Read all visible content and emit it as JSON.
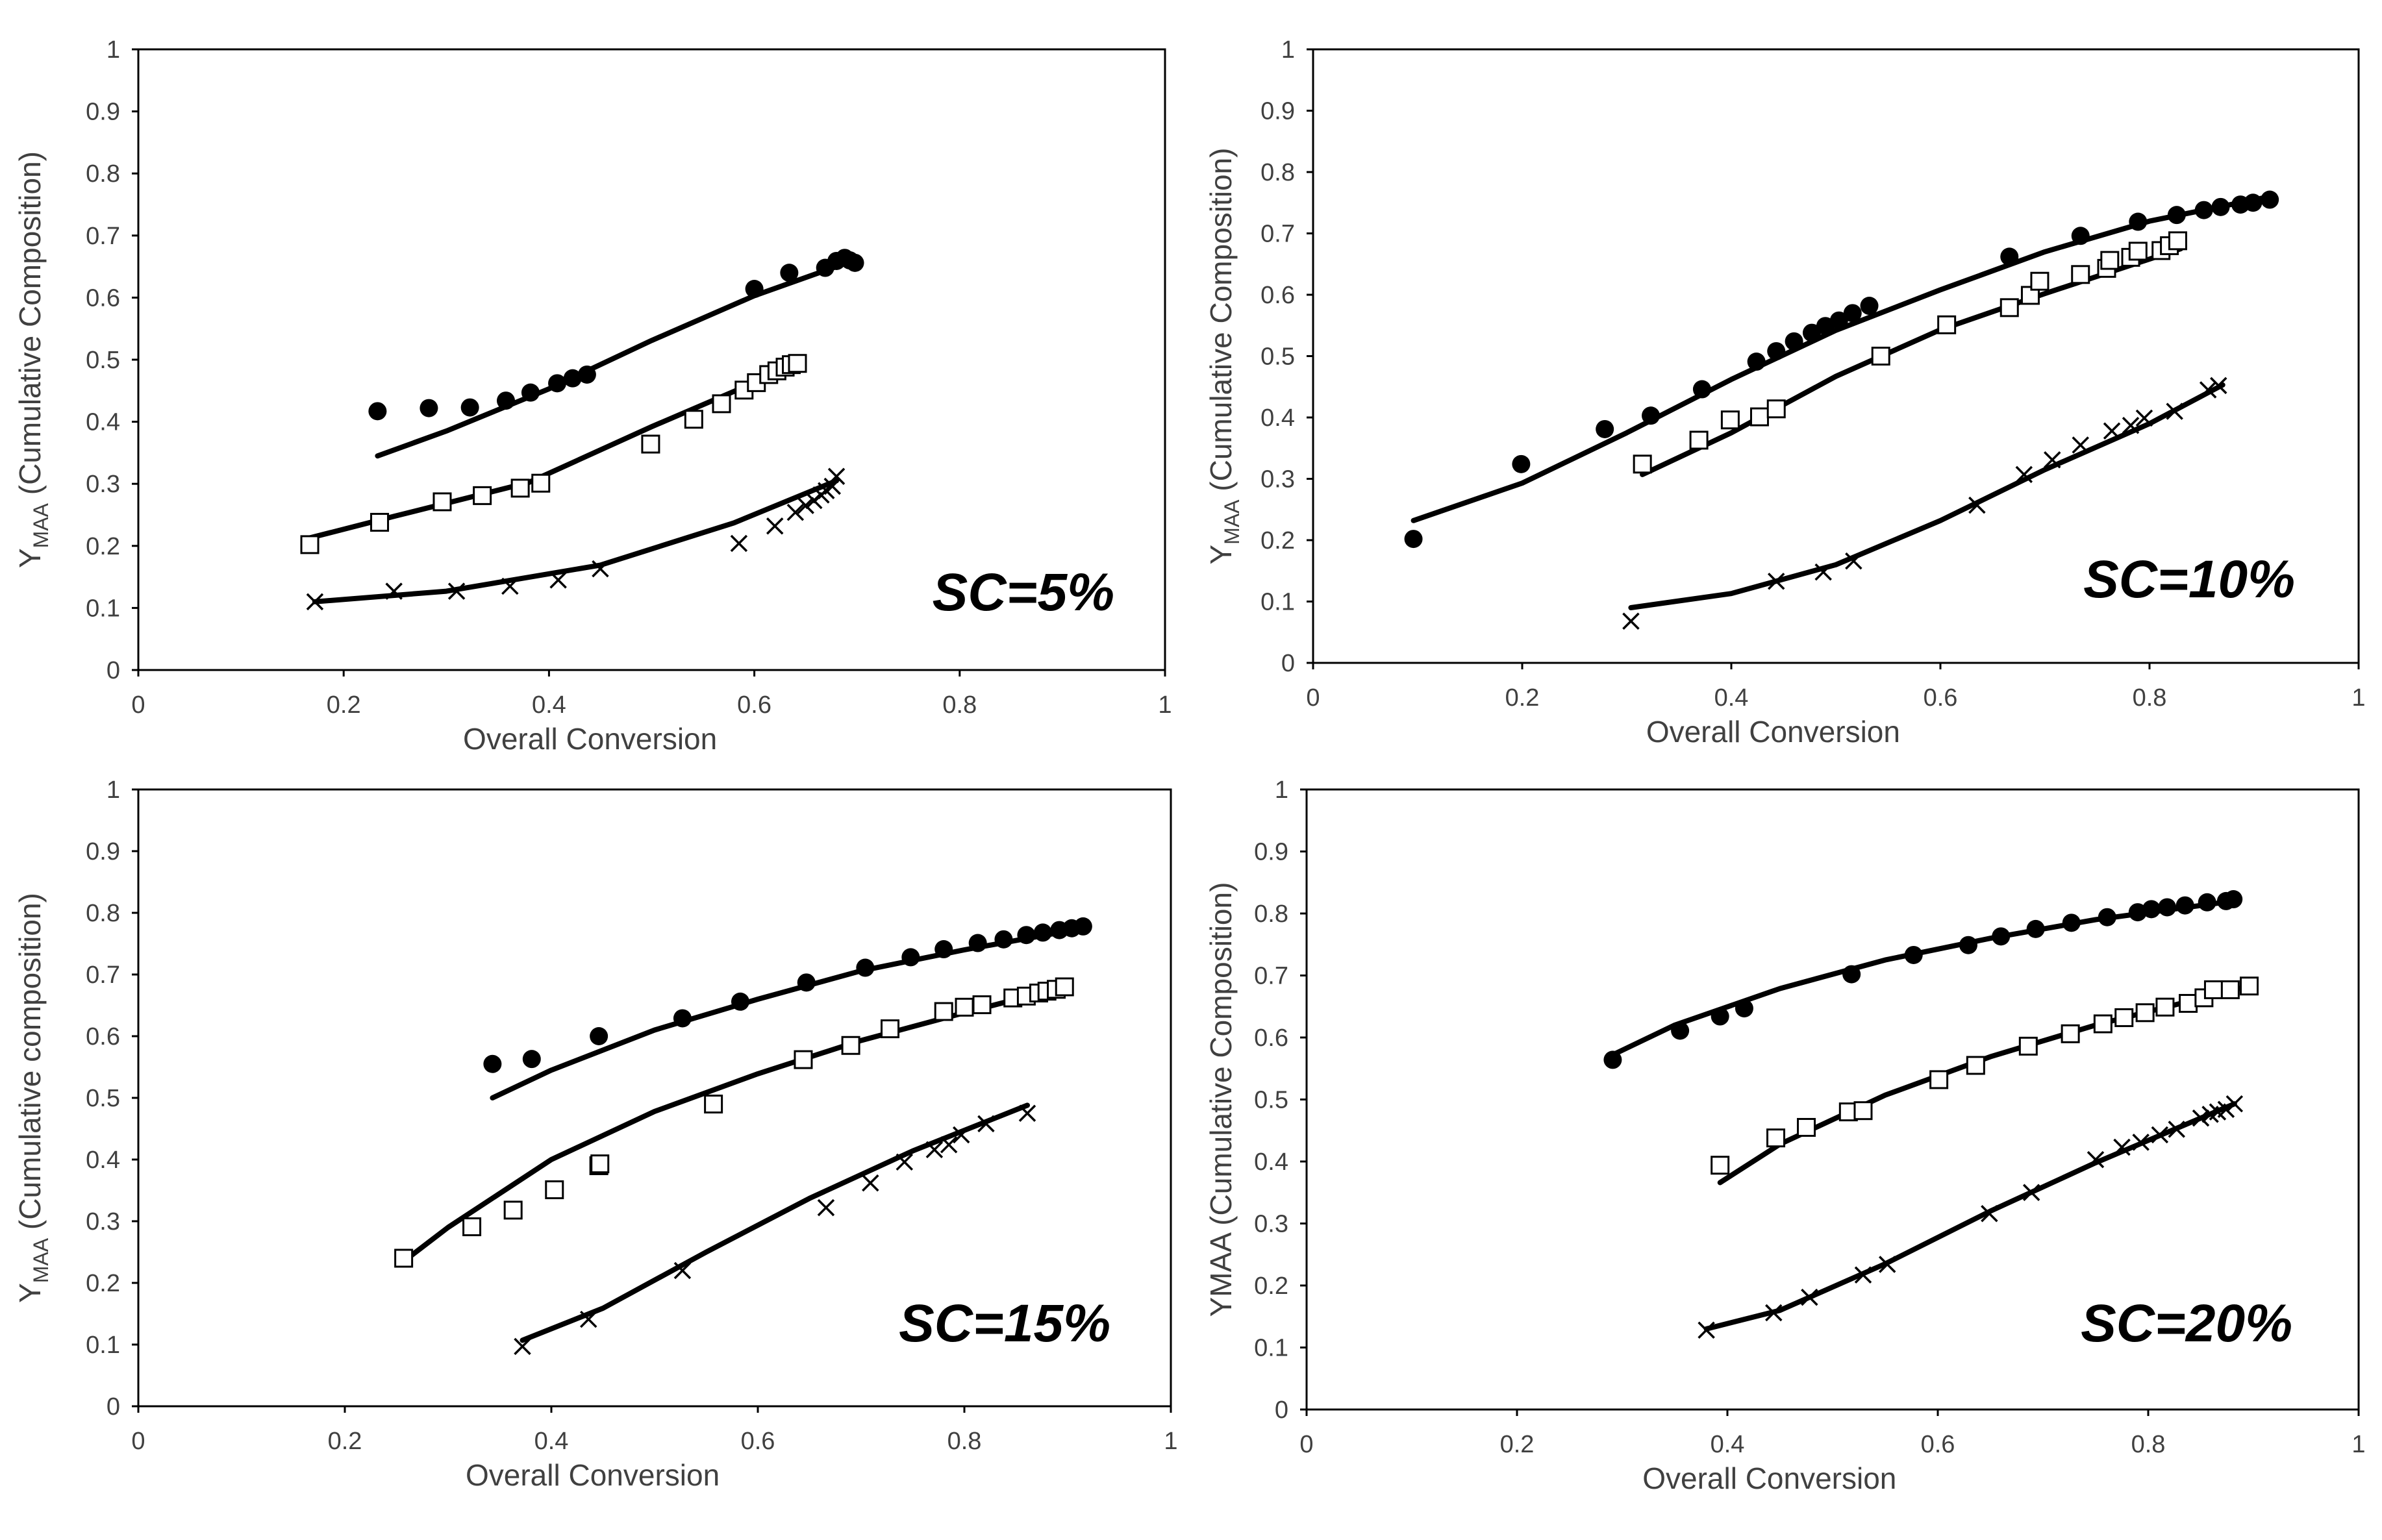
{
  "chart_data": [
    {
      "type": "scatter",
      "panel_label": "SC=5%",
      "xlabel": "Overall Conversion",
      "ylabel_main": "Y",
      "ylabel_sub": "MAA",
      "ylabel_rest": " (Cumulative Composition)",
      "xlim": [
        0,
        1
      ],
      "ylim": [
        0,
        1
      ],
      "x_ticks": [
        "0",
        "0.2",
        "0.4",
        "0.6",
        "0.8",
        "1"
      ],
      "y_ticks": [
        "0",
        "0.1",
        "0.2",
        "0.3",
        "0.4",
        "0.5",
        "0.6",
        "0.7",
        "0.8",
        "0.9",
        "1"
      ],
      "series": [
        {
          "name": "filled-circle",
          "marker": "circle",
          "x": [
            0.233,
            0.283,
            0.323,
            0.358,
            0.382,
            0.408,
            0.423,
            0.437,
            0.6,
            0.634,
            0.669,
            0.68,
            0.688,
            0.693,
            0.698
          ],
          "y": [
            0.417,
            0.422,
            0.423,
            0.434,
            0.447,
            0.462,
            0.47,
            0.476,
            0.614,
            0.64,
            0.648,
            0.659,
            0.664,
            0.66,
            0.656
          ]
        },
        {
          "name": "open-square",
          "marker": "square",
          "x": [
            0.167,
            0.235,
            0.296,
            0.335,
            0.372,
            0.392,
            0.499,
            0.541,
            0.568,
            0.59,
            0.602,
            0.614,
            0.622,
            0.63,
            0.636,
            0.642
          ],
          "y": [
            0.202,
            0.238,
            0.271,
            0.281,
            0.293,
            0.301,
            0.364,
            0.404,
            0.429,
            0.451,
            0.463,
            0.476,
            0.482,
            0.488,
            0.492,
            0.494
          ]
        },
        {
          "name": "cross",
          "marker": "x",
          "x": [
            0.172,
            0.249,
            0.31,
            0.362,
            0.409,
            0.45,
            0.585,
            0.62,
            0.64,
            0.65,
            0.658,
            0.665,
            0.67,
            0.676,
            0.68
          ],
          "y": [
            0.11,
            0.127,
            0.127,
            0.135,
            0.145,
            0.163,
            0.204,
            0.232,
            0.254,
            0.265,
            0.273,
            0.282,
            0.289,
            0.296,
            0.312
          ]
        }
      ],
      "fits": [
        {
          "x": [
            0.233,
            0.3,
            0.4,
            0.5,
            0.6,
            0.68
          ],
          "y": [
            0.345,
            0.385,
            0.453,
            0.531,
            0.603,
            0.65
          ]
        },
        {
          "x": [
            0.165,
            0.25,
            0.38,
            0.5,
            0.6,
            0.645
          ],
          "y": [
            0.212,
            0.248,
            0.302,
            0.392,
            0.463,
            0.495
          ]
        },
        {
          "x": [
            0.172,
            0.3,
            0.45,
            0.58,
            0.68
          ],
          "y": [
            0.11,
            0.127,
            0.169,
            0.237,
            0.305
          ]
        }
      ]
    },
    {
      "type": "scatter",
      "panel_label": "SC=10%",
      "xlabel": "Overall Conversion",
      "ylabel_main": "Y",
      "ylabel_sub": "MAA",
      "ylabel_rest": " (Cumulative Composition)",
      "xlim": [
        0,
        1
      ],
      "ylim": [
        0,
        1
      ],
      "x_ticks": [
        "0",
        "0.2",
        "0.4",
        "0.6",
        "0.8",
        "1"
      ],
      "y_ticks": [
        "0",
        "0.1",
        "0.2",
        "0.3",
        "0.4",
        "0.5",
        "0.6",
        "0.7",
        "0.8",
        "0.9",
        "1"
      ],
      "series": [
        {
          "name": "filled-circle",
          "marker": "circle",
          "x": [
            0.096,
            0.199,
            0.279,
            0.323,
            0.372,
            0.424,
            0.443,
            0.46,
            0.477,
            0.49,
            0.503,
            0.516,
            0.532,
            0.666,
            0.734,
            0.789,
            0.826,
            0.852,
            0.868,
            0.887,
            0.899,
            0.915
          ],
          "y": [
            0.202,
            0.324,
            0.381,
            0.403,
            0.446,
            0.491,
            0.508,
            0.524,
            0.538,
            0.549,
            0.558,
            0.57,
            0.582,
            0.662,
            0.696,
            0.719,
            0.73,
            0.738,
            0.743,
            0.747,
            0.75,
            0.755
          ]
        },
        {
          "name": "open-square",
          "marker": "square",
          "x": [
            0.315,
            0.369,
            0.399,
            0.427,
            0.443,
            0.543,
            0.606,
            0.666,
            0.686,
            0.695,
            0.734,
            0.759,
            0.762,
            0.782,
            0.789,
            0.811,
            0.819,
            0.827
          ],
          "y": [
            0.324,
            0.363,
            0.396,
            0.401,
            0.414,
            0.5,
            0.551,
            0.579,
            0.599,
            0.622,
            0.633,
            0.643,
            0.656,
            0.661,
            0.671,
            0.672,
            0.68,
            0.688
          ]
        },
        {
          "name": "cross",
          "marker": "x",
          "x": [
            0.304,
            0.443,
            0.488,
            0.517,
            0.635,
            0.68,
            0.707,
            0.734,
            0.764,
            0.782,
            0.795,
            0.824,
            0.856,
            0.866
          ],
          "y": [
            0.068,
            0.133,
            0.148,
            0.166,
            0.257,
            0.307,
            0.331,
            0.355,
            0.378,
            0.387,
            0.399,
            0.41,
            0.445,
            0.452
          ]
        }
      ],
      "fits": [
        {
          "x": [
            0.096,
            0.2,
            0.3,
            0.4,
            0.5,
            0.6,
            0.7,
            0.8,
            0.915
          ],
          "y": [
            0.232,
            0.293,
            0.375,
            0.462,
            0.542,
            0.608,
            0.67,
            0.72,
            0.76
          ]
        },
        {
          "x": [
            0.315,
            0.4,
            0.5,
            0.6,
            0.7,
            0.83
          ],
          "y": [
            0.307,
            0.375,
            0.467,
            0.543,
            0.602,
            0.675
          ]
        },
        {
          "x": [
            0.304,
            0.4,
            0.5,
            0.6,
            0.7,
            0.8,
            0.87
          ],
          "y": [
            0.09,
            0.113,
            0.16,
            0.232,
            0.315,
            0.39,
            0.453
          ]
        }
      ]
    },
    {
      "type": "scatter",
      "panel_label": "SC=15%",
      "xlabel": "Overall Conversion",
      "ylabel_main": "Y",
      "ylabel_sub": "MAA",
      "ylabel_rest": " (Cumulative composition)",
      "xlim": [
        0,
        1
      ],
      "ylim": [
        0,
        1
      ],
      "x_ticks": [
        "0",
        "0.2",
        "0.4",
        "0.6",
        "0.8",
        "1"
      ],
      "y_ticks": [
        "0",
        "0.1",
        "0.2",
        "0.3",
        "0.4",
        "0.5",
        "0.6",
        "0.7",
        "0.8",
        "0.9",
        "1"
      ],
      "series": [
        {
          "name": "filled-circle",
          "marker": "circle",
          "x": [
            0.343,
            0.381,
            0.446,
            0.527,
            0.583,
            0.647,
            0.704,
            0.748,
            0.78,
            0.813,
            0.838,
            0.86,
            0.876,
            0.892,
            0.904,
            0.915
          ],
          "y": [
            0.555,
            0.563,
            0.6,
            0.629,
            0.656,
            0.687,
            0.711,
            0.728,
            0.741,
            0.751,
            0.757,
            0.764,
            0.768,
            0.772,
            0.775,
            0.778
          ]
        },
        {
          "name": "open-square",
          "marker": "square",
          "x": [
            0.257,
            0.323,
            0.363,
            0.403,
            0.446,
            0.447,
            0.557,
            0.644,
            0.69,
            0.728,
            0.78,
            0.8,
            0.817,
            0.847,
            0.86,
            0.872,
            0.88,
            0.889,
            0.897
          ],
          "y": [
            0.24,
            0.291,
            0.318,
            0.351,
            0.39,
            0.393,
            0.49,
            0.562,
            0.585,
            0.612,
            0.64,
            0.647,
            0.651,
            0.662,
            0.665,
            0.67,
            0.673,
            0.676,
            0.68
          ]
        },
        {
          "name": "cross",
          "marker": "x",
          "x": [
            0.372,
            0.436,
            0.527,
            0.666,
            0.709,
            0.742,
            0.771,
            0.785,
            0.797,
            0.821,
            0.861
          ],
          "y": [
            0.097,
            0.141,
            0.22,
            0.322,
            0.362,
            0.396,
            0.416,
            0.424,
            0.44,
            0.458,
            0.475
          ]
        }
      ],
      "fits": [
        {
          "x": [
            0.343,
            0.4,
            0.5,
            0.6,
            0.7,
            0.8,
            0.915
          ],
          "y": [
            0.5,
            0.545,
            0.61,
            0.66,
            0.706,
            0.74,
            0.775
          ]
        },
        {
          "x": [
            0.257,
            0.3,
            0.4,
            0.5,
            0.6,
            0.7,
            0.8,
            0.897
          ],
          "y": [
            0.235,
            0.29,
            0.4,
            0.478,
            0.539,
            0.593,
            0.638,
            0.68
          ]
        },
        {
          "x": [
            0.372,
            0.45,
            0.55,
            0.65,
            0.75,
            0.861
          ],
          "y": [
            0.107,
            0.159,
            0.25,
            0.337,
            0.414,
            0.488
          ]
        }
      ]
    },
    {
      "type": "scatter",
      "panel_label": "SC=20%",
      "xlabel": "Overall Conversion",
      "ylabel_main": "YMAA",
      "ylabel_sub": "",
      "ylabel_rest": " (Cumulative Composition)",
      "xlim": [
        0,
        1
      ],
      "ylim": [
        0,
        1
      ],
      "x_ticks": [
        "0",
        "0.2",
        "0.4",
        "0.6",
        "0.8",
        "1"
      ],
      "y_ticks": [
        "0",
        "0.1",
        "0.2",
        "0.3",
        "0.4",
        "0.5",
        "0.6",
        "0.7",
        "0.8",
        "0.9",
        "1"
      ],
      "series": [
        {
          "name": "filled-circle",
          "marker": "circle",
          "x": [
            0.291,
            0.355,
            0.393,
            0.416,
            0.518,
            0.577,
            0.629,
            0.66,
            0.693,
            0.727,
            0.761,
            0.79,
            0.803,
            0.818,
            0.835,
            0.856,
            0.874,
            0.881
          ],
          "y": [
            0.564,
            0.611,
            0.634,
            0.647,
            0.702,
            0.733,
            0.749,
            0.763,
            0.775,
            0.785,
            0.794,
            0.802,
            0.807,
            0.81,
            0.813,
            0.818,
            0.82,
            0.823
          ]
        },
        {
          "name": "open-square",
          "marker": "square",
          "x": [
            0.393,
            0.446,
            0.475,
            0.515,
            0.529,
            0.601,
            0.636,
            0.686,
            0.726,
            0.757,
            0.777,
            0.797,
            0.816,
            0.838,
            0.853,
            0.862,
            0.878,
            0.896
          ],
          "y": [
            0.394,
            0.438,
            0.455,
            0.48,
            0.482,
            0.532,
            0.555,
            0.586,
            0.606,
            0.622,
            0.632,
            0.64,
            0.649,
            0.655,
            0.664,
            0.677,
            0.677,
            0.683
          ]
        },
        {
          "name": "cross",
          "marker": "x",
          "x": [
            0.38,
            0.444,
            0.478,
            0.529,
            0.552,
            0.649,
            0.689,
            0.75,
            0.775,
            0.793,
            0.811,
            0.827,
            0.85,
            0.859,
            0.866,
            0.874,
            0.882
          ],
          "y": [
            0.128,
            0.156,
            0.181,
            0.217,
            0.234,
            0.316,
            0.35,
            0.403,
            0.423,
            0.431,
            0.443,
            0.452,
            0.47,
            0.476,
            0.48,
            0.484,
            0.493
          ]
        }
      ],
      "fits": [
        {
          "x": [
            0.291,
            0.35,
            0.45,
            0.55,
            0.65,
            0.75,
            0.881
          ],
          "y": [
            0.572,
            0.62,
            0.679,
            0.725,
            0.76,
            0.79,
            0.82
          ]
        },
        {
          "x": [
            0.393,
            0.45,
            0.55,
            0.65,
            0.75,
            0.896
          ],
          "y": [
            0.366,
            0.428,
            0.507,
            0.569,
            0.62,
            0.683
          ]
        },
        {
          "x": [
            0.38,
            0.45,
            0.55,
            0.65,
            0.75,
            0.882
          ],
          "y": [
            0.13,
            0.16,
            0.235,
            0.32,
            0.398,
            0.493
          ]
        }
      ]
    }
  ]
}
